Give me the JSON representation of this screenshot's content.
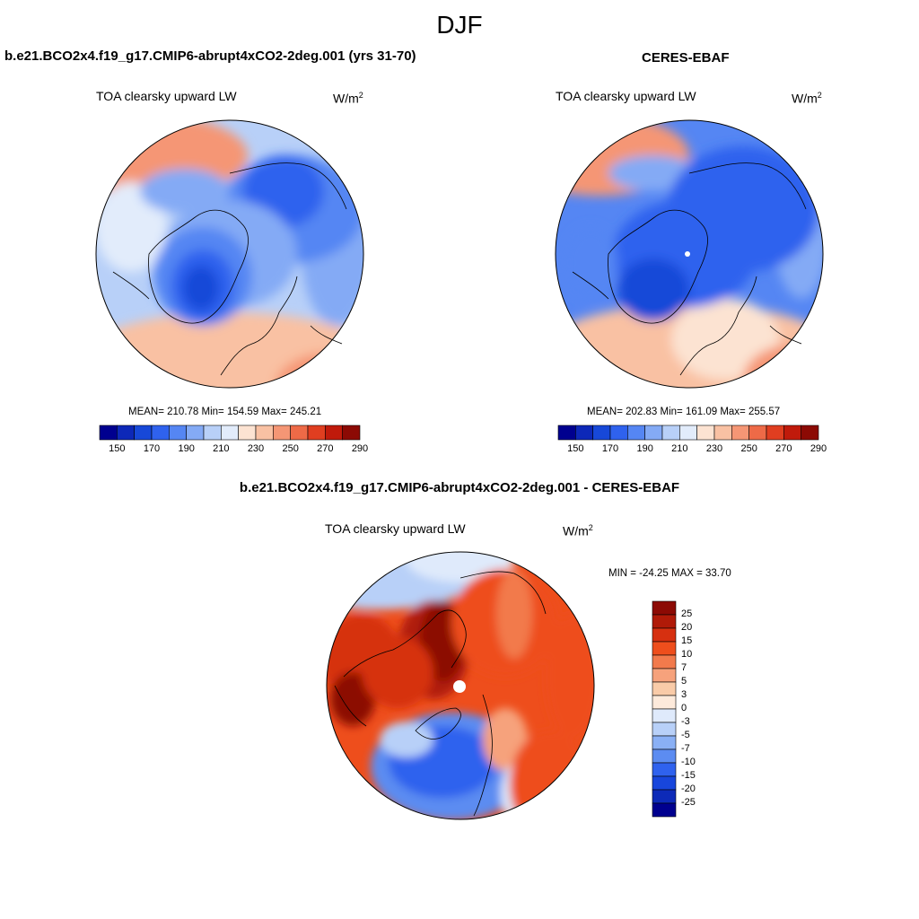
{
  "figure": {
    "title": "DJF"
  },
  "left_panel": {
    "title": "b.e21.BCO2x4.f19_g17.CMIP6-abrupt4xCO2-2deg.001 (yrs 31-70)",
    "variable": "TOA clearsky upward LW",
    "units_base": "W/m",
    "units_exp": "2",
    "stats": "MEAN= 210.78  Min= 154.59  Max= 245.21"
  },
  "right_panel": {
    "title": "CERES-EBAF",
    "variable": "TOA clearsky upward LW",
    "units_base": "W/m",
    "units_exp": "2",
    "stats": "MEAN= 202.83  Min= 161.09  Max= 255.57"
  },
  "diff_panel": {
    "title": "b.e21.BCO2x4.f19_g17.CMIP6-abrupt4xCO2-2deg.001 - CERES-EBAF",
    "variable": "TOA clearsky upward LW",
    "units_base": "W/m",
    "units_exp": "2",
    "stats": "MIN = -24.25 MAX =  33.70"
  },
  "colors": {
    "abs_scale": [
      "#00008f",
      "#0d28b8",
      "#1748d8",
      "#2f62ee",
      "#5586f3",
      "#84aaf5",
      "#b8d0f8",
      "#e2ecfb",
      "#fce3d2",
      "#f9c1a3",
      "#f59675",
      "#ee6a47",
      "#e03e20",
      "#c01a0b",
      "#8c0a04"
    ],
    "diff_scale": [
      "#8c0a04",
      "#b01a08",
      "#d63010",
      "#ee4e1c",
      "#f27a4c",
      "#f6a27c",
      "#f9cba8",
      "#fdeadb",
      "#dfeafb",
      "#b8d0f8",
      "#8ab0f5",
      "#5c8cf1",
      "#2f62ee",
      "#1846dc",
      "#0d2ab8",
      "#00008f"
    ]
  },
  "chart_data": [
    {
      "type": "heatmap",
      "title": "b.e21.BCO2x4.f19_g17.CMIP6-abrupt4xCO2-2deg.001 (yrs 31-70)",
      "subtitle": "TOA clearsky upward LW",
      "units": "W/m2",
      "colorbar_ticks": [
        150,
        170,
        190,
        210,
        230,
        250,
        270,
        290
      ],
      "mean": 210.78,
      "min": 154.59,
      "max": 245.21
    },
    {
      "type": "heatmap",
      "title": "CERES-EBAF",
      "subtitle": "TOA clearsky upward LW",
      "units": "W/m2",
      "colorbar_ticks": [
        150,
        170,
        190,
        210,
        230,
        250,
        270,
        290
      ],
      "mean": 202.83,
      "min": 161.09,
      "max": 255.57
    },
    {
      "type": "heatmap",
      "title": "b.e21.BCO2x4.f19_g17.CMIP6-abrupt4xCO2-2deg.001 - CERES-EBAF",
      "subtitle": "TOA clearsky upward LW",
      "units": "W/m2",
      "colorbar_ticks": [
        25,
        20,
        15,
        10,
        7,
        5,
        3,
        0,
        -3,
        -5,
        -7,
        -10,
        -15,
        -20,
        -25
      ],
      "min": -24.25,
      "max": 33.7
    }
  ]
}
